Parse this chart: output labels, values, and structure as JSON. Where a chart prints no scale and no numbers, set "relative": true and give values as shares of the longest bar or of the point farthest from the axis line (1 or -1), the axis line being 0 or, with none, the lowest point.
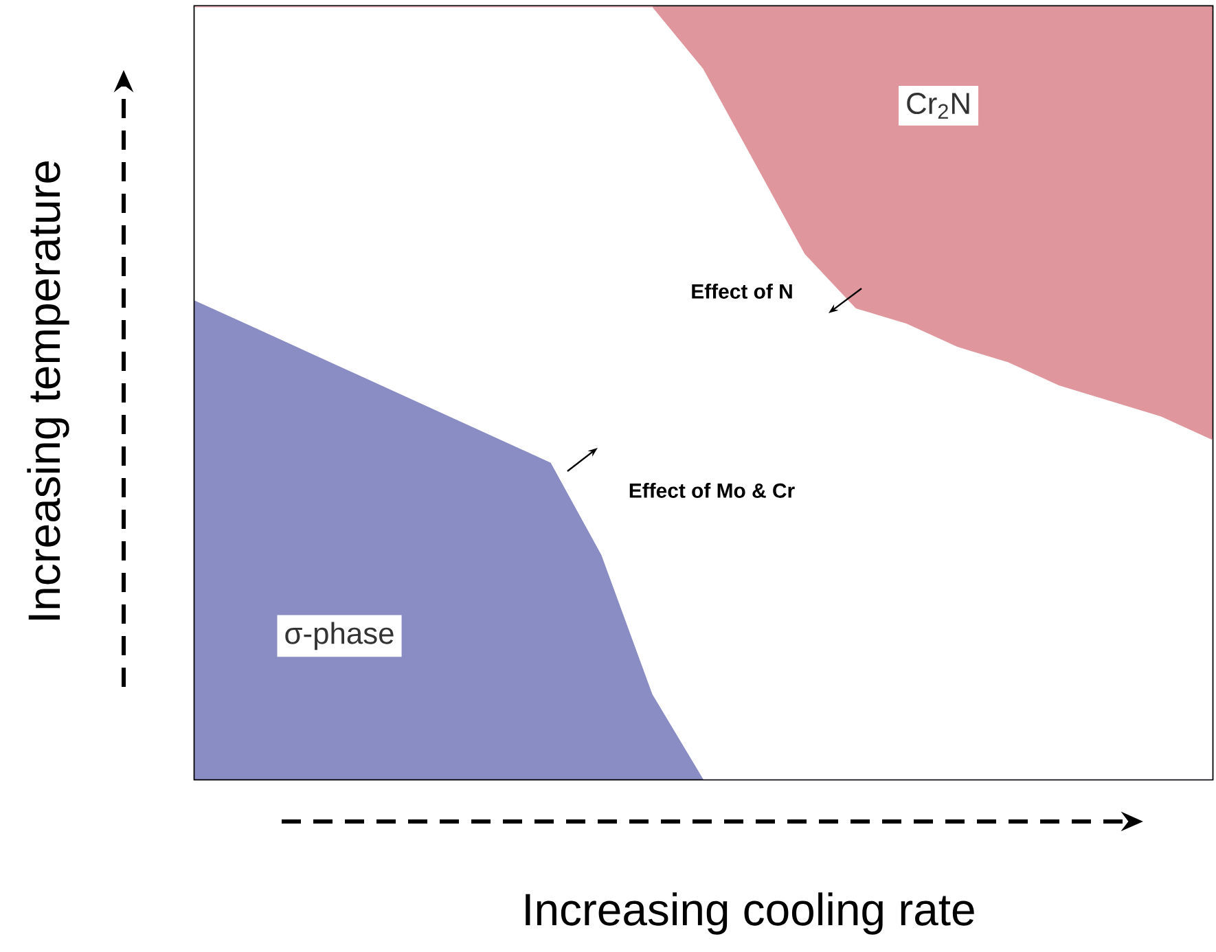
{
  "chart_data": {
    "type": "area",
    "relative": true,
    "stacked": true,
    "xlabel": "Increasing cooling rate",
    "ylabel": "Increasing temperature",
    "categories": [
      null,
      null,
      null,
      null,
      null,
      null,
      null,
      null,
      null,
      null,
      null,
      null,
      null,
      null,
      null,
      null,
      null,
      null,
      null,
      null,
      null
    ],
    "series": [
      {
        "name": "σ-phase",
        "color": "#8a8cc4",
        "values": [
          0.62,
          0.59,
          0.56,
          0.53,
          0.5,
          0.47,
          0.44,
          0.41,
          0.29,
          0.11,
          0,
          0,
          0,
          0,
          0,
          0,
          0,
          0,
          0,
          0,
          0
        ]
      },
      {
        "color": "#ffffff",
        "values": [
          0.38,
          0.41,
          0.44,
          0.47,
          0.5,
          0.53,
          0.56,
          0.59,
          0.71,
          0.89,
          0.92,
          0.8,
          0.68,
          0.61,
          0.59,
          0.56,
          0.54,
          0.51,
          0.49,
          0.47,
          0.44
        ]
      },
      {
        "name": "Cr$_{2}$N",
        "color": "#e0969d",
        "values": [
          0,
          0,
          0,
          0,
          0,
          0,
          0,
          0,
          0,
          0,
          0.08,
          0.2,
          0.32,
          0.39,
          0.41,
          0.44,
          0.46,
          0.49,
          0.51,
          0.53,
          0.56
        ]
      }
    ],
    "annotations": [
      "Effect of N",
      "Effect of Mo & Cr"
    ]
  }
}
